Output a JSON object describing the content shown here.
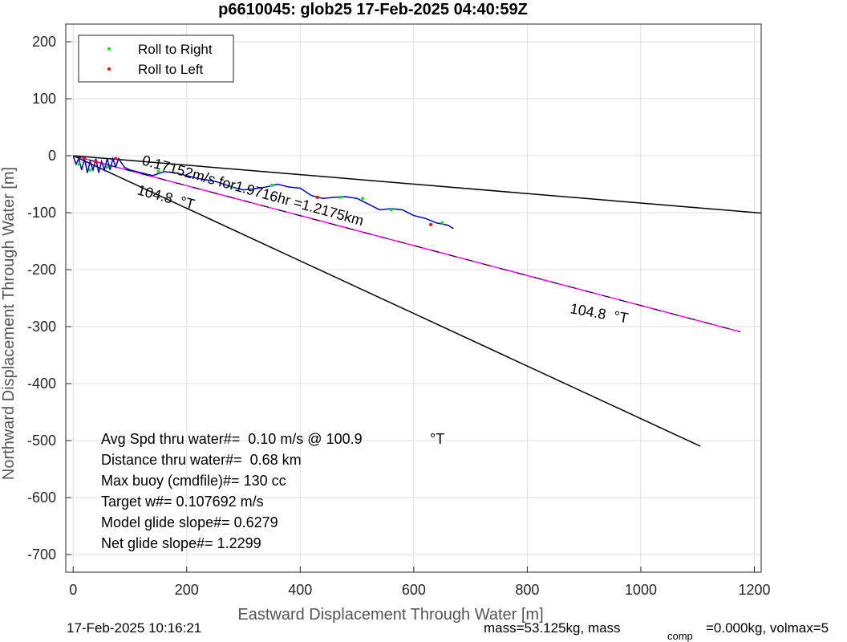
{
  "chart_data": {
    "type": "line",
    "title": "p6610045: glob25 17-Feb-2025 04:40:59Z",
    "xlabel": "Eastward Displacement Through Water [m]",
    "ylabel": "Northward Displacement Through Water [m]",
    "xlim": [
      -13,
      1212
    ],
    "ylim": [
      -731,
      231
    ],
    "xticks": [
      0,
      200,
      400,
      600,
      800,
      1000,
      1200
    ],
    "yticks": [
      -700,
      -600,
      -500,
      -400,
      -300,
      -200,
      -100,
      0,
      100,
      200
    ],
    "grid": true,
    "legend": "upper left",
    "lines": [
      {
        "color": "#000000",
        "x": [
          0,
          1215
        ],
        "y": [
          0,
          -101
        ]
      },
      {
        "color": "#000000",
        "x": [
          0,
          1105
        ],
        "y": [
          0,
          -510
        ]
      },
      {
        "color": "#ff00ff",
        "x": [
          0,
          1175
        ],
        "y": [
          0,
          -309
        ]
      },
      {
        "color": "#0000cc",
        "x": [
          0,
          5,
          10,
          15,
          20,
          25,
          30,
          35,
          40,
          45,
          50,
          55,
          60,
          65,
          70,
          75,
          80,
          90,
          100,
          120,
          140,
          160,
          180,
          200,
          220,
          250,
          280,
          300,
          320,
          340,
          360,
          380,
          400,
          420,
          440,
          460,
          480,
          500,
          520,
          540,
          560,
          580,
          600,
          620,
          640,
          660,
          670
        ],
        "y": [
          0,
          -15,
          -5,
          -25,
          -5,
          -30,
          -10,
          -25,
          -5,
          -30,
          -10,
          -25,
          -5,
          -25,
          -5,
          -20,
          -5,
          -20,
          -25,
          -30,
          -35,
          -28,
          -30,
          -35,
          -40,
          -45,
          -55,
          -60,
          -58,
          -55,
          -50,
          -55,
          -57,
          -70,
          -75,
          -73,
          -72,
          -75,
          -85,
          -95,
          -93,
          -95,
          -105,
          -110,
          -118,
          -122,
          -128
        ]
      }
    ],
    "series": [
      {
        "name": "Roll to Right",
        "color": "#00ee00",
        "x": [
          10,
          30,
          60,
          150,
          280,
          350,
          470,
          510,
          560,
          650
        ],
        "y": [
          -15,
          -25,
          -20,
          -28,
          -55,
          -52,
          -73,
          -75,
          -95,
          -118
        ]
      },
      {
        "name": "Roll to Left",
        "color": "#ff0000",
        "x": [
          20,
          40,
          75,
          430,
          630
        ],
        "y": [
          -5,
          -10,
          -5,
          -73,
          -121
        ]
      }
    ],
    "annotations": [
      "0.17152m/s for1.9716hr =1.2175km",
      "104.8  °T",
      "104.8  °T",
      "Avg Spd thru water#=  0.10 m/s @ 100.9",
      "°T",
      "Distance thru water#=  0.68 km",
      "Max buoy (cmdfile)#= 130 cc",
      "Target w#= 0.107692 m/s",
      "Model glide slope#= 0.6279",
      "Net glide slope#= 1.2299"
    ],
    "footer": [
      "17-Feb-2025 10:16:21",
      "mass=53.125kg, mass",
      "comp",
      "=0.000kg, volmax=5"
    ]
  }
}
